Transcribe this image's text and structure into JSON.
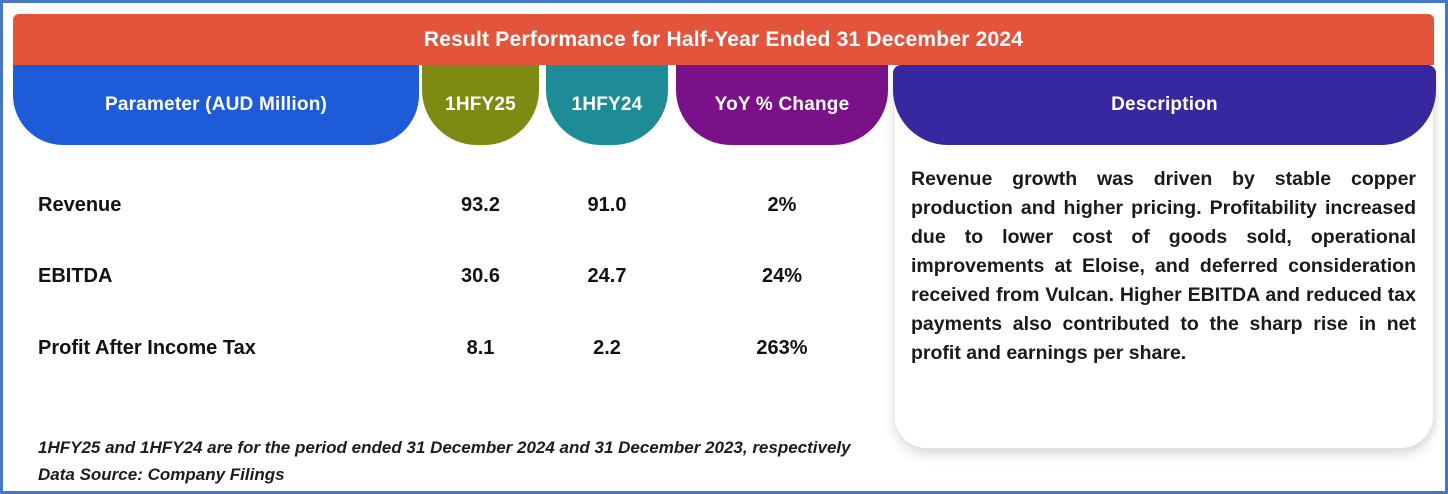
{
  "colors": {
    "banner": "#e2543b",
    "param-pill": "#1d5bd8",
    "hfy25-pill": "#7d8b13",
    "hfy24-pill": "#1e8c96",
    "yoy-pill": "#7a1188",
    "desc-pill": "#38289f",
    "frame-border": "#4677c2"
  },
  "banner": {
    "title": "Result Performance for Half-Year Ended 31 December 2024"
  },
  "columns": {
    "parameter": "Parameter (AUD Million)",
    "hfy25": "1HFY25",
    "hfy24": "1HFY24",
    "yoy": "YoY % Change",
    "description": "Description"
  },
  "table": {
    "rows": [
      {
        "parameter": "Revenue",
        "hfy25": "93.2",
        "hfy24": "91.0",
        "yoy": "2%"
      },
      {
        "parameter": "EBITDA",
        "hfy25": "30.6",
        "hfy24": "24.7",
        "yoy": "24%"
      },
      {
        "parameter": "Profit After Income Tax",
        "hfy25": "8.1",
        "hfy24": "2.2",
        "yoy": "263%"
      }
    ]
  },
  "description": {
    "text": "Revenue growth was driven by stable copper production and higher pricing. Profitability increased due to lower cost of goods sold, operational improvements at Eloise, and deferred consideration received from Vulcan. Higher EBITDA and reduced tax payments also contributed to the sharp rise in net profit and earnings per share."
  },
  "footnotes": [
    "1HFY25 and 1HFY24 are for the period ended 31 December 2024 and 31 December 2023, respectively",
    "Data Source: Company Filings"
  ],
  "chart_data": {
    "type": "table",
    "title": "Result Performance for Half-Year Ended 31 December 2024",
    "columns": [
      "Parameter (AUD Million)",
      "1HFY25",
      "1HFY24",
      "YoY % Change",
      "Description"
    ],
    "rows": [
      [
        "Revenue",
        93.2,
        91.0,
        "2%"
      ],
      [
        "EBITDA",
        30.6,
        24.7,
        "24%"
      ],
      [
        "Profit After Income Tax",
        8.1,
        2.2,
        "263%"
      ]
    ],
    "description": "Revenue growth was driven by stable copper production and higher pricing. Profitability increased due to lower cost of goods sold, operational improvements at Eloise, and deferred consideration received from Vulcan. Higher EBITDA and reduced tax payments also contributed to the sharp rise in net profit and earnings per share.",
    "notes": [
      "1HFY25 and 1HFY24 are for the period ended 31 December 2024 and 31 December 2023, respectively",
      "Data Source: Company Filings"
    ]
  }
}
